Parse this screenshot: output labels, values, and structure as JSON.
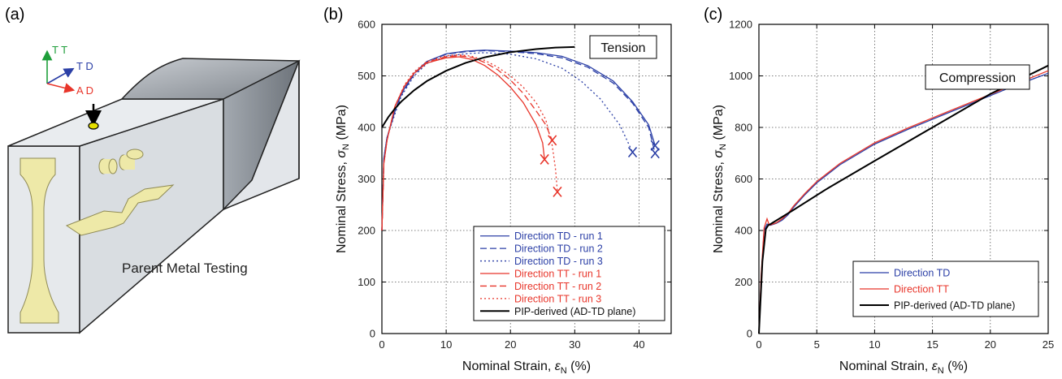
{
  "panels": {
    "a": {
      "label": "(a)",
      "caption": "Parent Metal Testing",
      "axes": {
        "tt": "T T",
        "td": "T D",
        "ad": "A D"
      }
    },
    "b": {
      "label": "(b)"
    },
    "c": {
      "label": "(c)"
    }
  },
  "colors": {
    "blue": "#2b3fa6",
    "red": "#e8352a",
    "black": "#000000",
    "green": "#1e9e3a",
    "specimen": "#eee9a8",
    "block": "#dde1e6"
  },
  "chart_data": [
    {
      "type": "line",
      "annotation": "Tension",
      "xlabel_main": "Nominal Strain, ",
      "xlabel_sym": "ε",
      "xlabel_sub": "N",
      "xlabel_unit": " (%)",
      "ylabel_main": "Nominal Stress, ",
      "ylabel_sym": "σ",
      "ylabel_sub": "N",
      "ylabel_unit": " (MPa)",
      "xlim": [
        0,
        45
      ],
      "ylim": [
        0,
        600
      ],
      "xticks": [
        "0",
        "10",
        "20",
        "30",
        "40"
      ],
      "yticks": [
        "0",
        "100",
        "200",
        "300",
        "400",
        "500",
        "600"
      ],
      "grid": true,
      "legend_position": "bottom-right",
      "series": [
        {
          "name": "Direction TD - run 1",
          "color": "blue",
          "dash": "solid",
          "end_marker": true,
          "points": [
            [
              0,
              200
            ],
            [
              0.3,
              340
            ],
            [
              0.8,
              380
            ],
            [
              2,
              430
            ],
            [
              3,
              465
            ],
            [
              5,
              505
            ],
            [
              7,
              528
            ],
            [
              10,
              543
            ],
            [
              13,
              548
            ],
            [
              16,
              550
            ],
            [
              20,
              548
            ],
            [
              24,
              545
            ],
            [
              28,
              538
            ],
            [
              32,
              520
            ],
            [
              36,
              490
            ],
            [
              39,
              450
            ],
            [
              41.5,
              405
            ],
            [
              42.5,
              365
            ]
          ]
        },
        {
          "name": "Direction TD - run 2",
          "color": "blue",
          "dash": "dash",
          "end_marker": true,
          "points": [
            [
              0,
              200
            ],
            [
              0.3,
              340
            ],
            [
              0.8,
              380
            ],
            [
              2,
              430
            ],
            [
              3,
              463
            ],
            [
              5,
              503
            ],
            [
              7,
              527
            ],
            [
              10,
              542
            ],
            [
              13,
              547
            ],
            [
              16,
              549
            ],
            [
              20,
              547
            ],
            [
              24,
              543
            ],
            [
              28,
              535
            ],
            [
              32,
              517
            ],
            [
              36,
              486
            ],
            [
              39,
              447
            ],
            [
              41.5,
              400
            ],
            [
              42.5,
              350
            ]
          ]
        },
        {
          "name": "Direction TD - run 3",
          "color": "blue",
          "dash": "dot",
          "end_marker": true,
          "points": [
            [
              0,
              200
            ],
            [
              0.3,
              340
            ],
            [
              0.8,
              380
            ],
            [
              2,
              425
            ],
            [
              3,
              460
            ],
            [
              5,
              500
            ],
            [
              7,
              524
            ],
            [
              10,
              538
            ],
            [
              13,
              543
            ],
            [
              16,
              545
            ],
            [
              20,
              542
            ],
            [
              24,
              533
            ],
            [
              28,
              515
            ],
            [
              31,
              490
            ],
            [
              34,
              455
            ],
            [
              37,
              405
            ],
            [
              39,
              352
            ]
          ]
        },
        {
          "name": "Direction TT - run 1",
          "color": "red",
          "dash": "solid",
          "end_marker": true,
          "points": [
            [
              0,
              200
            ],
            [
              0.3,
              330
            ],
            [
              0.8,
              375
            ],
            [
              2,
              440
            ],
            [
              3.5,
              480
            ],
            [
              5,
              505
            ],
            [
              7,
              525
            ],
            [
              10,
              535
            ],
            [
              12,
              537
            ],
            [
              14,
              532
            ],
            [
              16,
              520
            ],
            [
              18,
              502
            ],
            [
              20,
              478
            ],
            [
              22,
              448
            ],
            [
              24,
              405
            ],
            [
              25,
              370
            ],
            [
              25.3,
              338
            ]
          ]
        },
        {
          "name": "Direction TT - run 2",
          "color": "red",
          "dash": "dash",
          "end_marker": true,
          "points": [
            [
              0,
              200
            ],
            [
              0.3,
              330
            ],
            [
              0.8,
              375
            ],
            [
              2,
              440
            ],
            [
              3.5,
              480
            ],
            [
              5,
              505
            ],
            [
              7,
              526
            ],
            [
              10,
              537
            ],
            [
              12,
              539
            ],
            [
              14,
              536
            ],
            [
              16,
              526
            ],
            [
              18,
              512
            ],
            [
              20,
              492
            ],
            [
              22,
              466
            ],
            [
              24,
              432
            ],
            [
              25.5,
              405
            ],
            [
              26.5,
              375
            ]
          ]
        },
        {
          "name": "Direction TT - run 3",
          "color": "red",
          "dash": "dot",
          "end_marker": true,
          "points": [
            [
              0,
              200
            ],
            [
              0.3,
              330
            ],
            [
              0.8,
              375
            ],
            [
              2,
              440
            ],
            [
              3.5,
              482
            ],
            [
              5,
              508
            ],
            [
              7,
              528
            ],
            [
              10,
              539
            ],
            [
              12,
              541
            ],
            [
              14,
              538
            ],
            [
              16,
              530
            ],
            [
              18,
              517
            ],
            [
              20,
              500
            ],
            [
              22,
              478
            ],
            [
              24,
              448
            ],
            [
              25.5,
              415
            ],
            [
              26.5,
              365
            ],
            [
              27,
              320
            ],
            [
              27.3,
              275
            ]
          ]
        },
        {
          "name": "PIP-derived (AD-TD plane)",
          "color": "black",
          "dash": "solid",
          "end_marker": false,
          "points": [
            [
              0,
              400
            ],
            [
              1,
              420
            ],
            [
              2,
              436
            ],
            [
              3,
              450
            ],
            [
              5,
              472
            ],
            [
              7,
              490
            ],
            [
              10,
              510
            ],
            [
              13,
              525
            ],
            [
              16,
              536
            ],
            [
              20,
              546
            ],
            [
              24,
              552
            ],
            [
              27,
              555
            ],
            [
              30,
              556
            ]
          ]
        }
      ]
    },
    {
      "type": "line",
      "annotation": "Compression",
      "xlabel_main": "Nominal Strain, ",
      "xlabel_sym": "ε",
      "xlabel_sub": "N",
      "xlabel_unit": " (%)",
      "ylabel_main": "Nominal Stress, ",
      "ylabel_sym": "σ",
      "ylabel_sub": "N",
      "ylabel_unit": " (MPa)",
      "xlim": [
        0,
        25
      ],
      "ylim": [
        0,
        1200
      ],
      "xticks": [
        "0",
        "5",
        "10",
        "15",
        "20",
        "25"
      ],
      "yticks": [
        "0",
        "200",
        "400",
        "600",
        "800",
        "1000",
        "1200"
      ],
      "grid": true,
      "legend_position": "bottom-right",
      "series": [
        {
          "name": "Direction TD",
          "color": "blue",
          "dash": "solid",
          "points": [
            [
              0,
              0
            ],
            [
              0.2,
              220
            ],
            [
              0.45,
              400
            ],
            [
              0.7,
              425
            ],
            [
              1,
              420
            ],
            [
              1.5,
              428
            ],
            [
              2,
              440
            ],
            [
              2.5,
              460
            ],
            [
              3,
              490
            ],
            [
              4,
              540
            ],
            [
              5,
              585
            ],
            [
              7,
              655
            ],
            [
              10,
              735
            ],
            [
              13,
              795
            ],
            [
              16,
              850
            ],
            [
              19,
              905
            ],
            [
              22,
              960
            ],
            [
              25,
              1010
            ]
          ]
        },
        {
          "name": "Direction TT",
          "color": "red",
          "dash": "solid",
          "points": [
            [
              0,
              0
            ],
            [
              0.2,
              230
            ],
            [
              0.45,
              410
            ],
            [
              0.7,
              445
            ],
            [
              0.9,
              420
            ],
            [
              1.5,
              430
            ],
            [
              2,
              445
            ],
            [
              2.5,
              465
            ],
            [
              3,
              495
            ],
            [
              4,
              545
            ],
            [
              5,
              590
            ],
            [
              7,
              660
            ],
            [
              10,
              740
            ],
            [
              13,
              800
            ],
            [
              16,
              855
            ],
            [
              19,
              910
            ],
            [
              22,
              965
            ],
            [
              25,
              1020
            ]
          ]
        },
        {
          "name": "PIP-derived (AD-TD plane)",
          "color": "black",
          "dash": "solid",
          "points": [
            [
              0,
              0
            ],
            [
              0.3,
              280
            ],
            [
              0.6,
              405
            ],
            [
              0.8,
              420
            ],
            [
              1,
              425
            ],
            [
              3,
              480
            ],
            [
              6,
              565
            ],
            [
              10,
              670
            ],
            [
              15,
              800
            ],
            [
              20,
              930
            ],
            [
              25,
              1040
            ]
          ]
        }
      ]
    }
  ]
}
